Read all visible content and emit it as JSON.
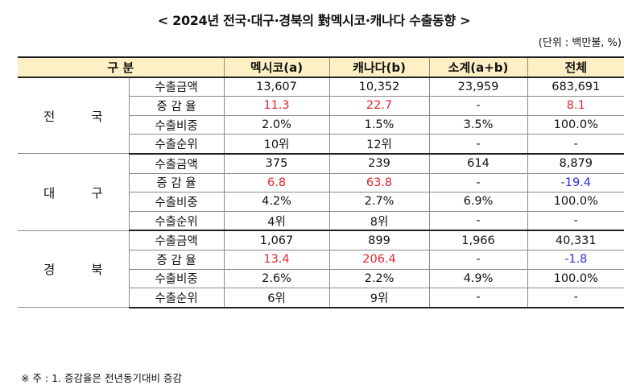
{
  "title": "< 2024년 전국·대구·경북의 對멕시코·캐나다 수출동향 >",
  "unit": "(단위 : 백만불, %)",
  "headers": [
    "구 분",
    "멕시코(a)",
    "캐나다(b)",
    "소계(a+b)",
    "전체"
  ],
  "groups": [
    {
      "region": "전 국",
      "rows": [
        {
          "label": "수출금액",
          "values": [
            "13,607",
            "10,352",
            "23,959",
            "683,691"
          ],
          "colors": [
            "",
            "",
            "",
            ""
          ]
        },
        {
          "label": "증 감 율",
          "values": [
            "11.3",
            "22.7",
            "-",
            "8.1"
          ],
          "colors": [
            "red",
            "red",
            "",
            "red"
          ]
        },
        {
          "label": "수출비중",
          "values": [
            "2.0%",
            "1.5%",
            "3.5%",
            "100.0%"
          ],
          "colors": [
            "",
            "",
            "",
            ""
          ]
        },
        {
          "label": "수출순위",
          "values": [
            "10위",
            "12위",
            "-",
            "-"
          ],
          "colors": [
            "",
            "",
            "",
            ""
          ]
        }
      ]
    },
    {
      "region": "대 구",
      "rows": [
        {
          "label": "수출금액",
          "values": [
            "375",
            "239",
            "614",
            "8,879"
          ],
          "colors": [
            "",
            "",
            "",
            ""
          ]
        },
        {
          "label": "증 감 율",
          "values": [
            "6.8",
            "63.8",
            "-",
            "-19.4"
          ],
          "colors": [
            "red",
            "red",
            "",
            "blue"
          ]
        },
        {
          "label": "수출비중",
          "values": [
            "4.2%",
            "2.7%",
            "6.9%",
            "100.0%"
          ],
          "colors": [
            "",
            "",
            "",
            ""
          ]
        },
        {
          "label": "수출순위",
          "values": [
            "4위",
            "8위",
            "-",
            "-"
          ],
          "colors": [
            "",
            "",
            "",
            ""
          ]
        }
      ]
    },
    {
      "region": "경 북",
      "rows": [
        {
          "label": "수출금액",
          "values": [
            "1,067",
            "899",
            "1,966",
            "40,331"
          ],
          "colors": [
            "",
            "",
            "",
            ""
          ]
        },
        {
          "label": "증 감 율",
          "values": [
            "13.4",
            "206.4",
            "-",
            "-1.8"
          ],
          "colors": [
            "red",
            "red",
            "",
            "blue"
          ]
        },
        {
          "label": "수출비중",
          "values": [
            "2.6%",
            "2.2%",
            "4.9%",
            "100.0%"
          ],
          "colors": [
            "",
            "",
            "",
            ""
          ]
        },
        {
          "label": "수출순위",
          "values": [
            "6위",
            "9위",
            "-",
            "-"
          ],
          "colors": [
            "",
            "",
            "",
            ""
          ]
        }
      ]
    }
  ],
  "note": "※ 주 : 1. 증감율은 전년동기대비 증감",
  "palette": {
    "header_bg": "#fdf0c5",
    "increase": "#e0262e",
    "decrease": "#2b2fd6"
  }
}
